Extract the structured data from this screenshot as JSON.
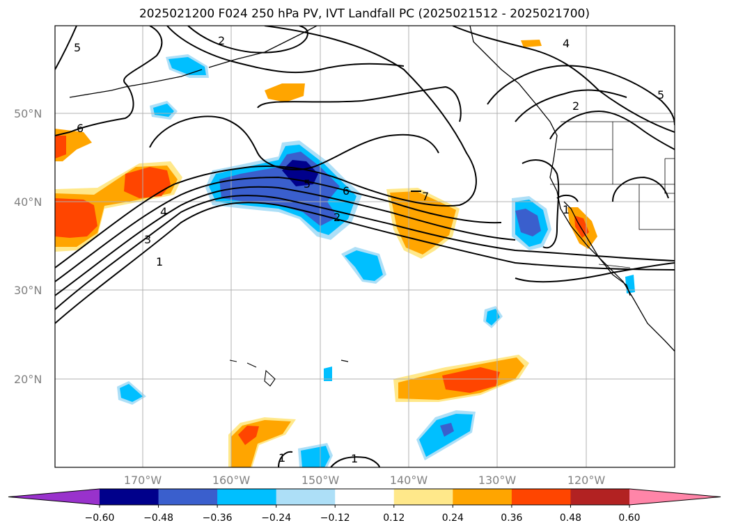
{
  "title": "2025021200 F024 250 hPa PV, IVT Landfall PC (2025021512 - 2025021700)",
  "lat_labels": [
    "50°N",
    "40°N",
    "30°N",
    "20°N"
  ],
  "lon_labels": [
    "170°W",
    "160°W",
    "150°W",
    "140°W",
    "130°W",
    "120°W"
  ],
  "colorbar": {
    "ticks": [
      "−0.60",
      "−0.48",
      "−0.36",
      "−0.24",
      "−0.12",
      "0.12",
      "0.24",
      "0.36",
      "0.48",
      "0.60"
    ],
    "colors": [
      "#9932CC",
      "#00008B",
      "#3A5FCD",
      "#00BFFF",
      "#ADDFF7",
      "#FFFFFF",
      "#FFE88A",
      "#FFA500",
      "#FF4500",
      "#B22222",
      "#FF85A8"
    ]
  },
  "contour_labels": [
    "5",
    "2",
    "6",
    "4",
    "3",
    "1",
    "5",
    "6",
    "2",
    "7",
    "4",
    "2",
    "5",
    "1",
    "1",
    "1"
  ]
}
